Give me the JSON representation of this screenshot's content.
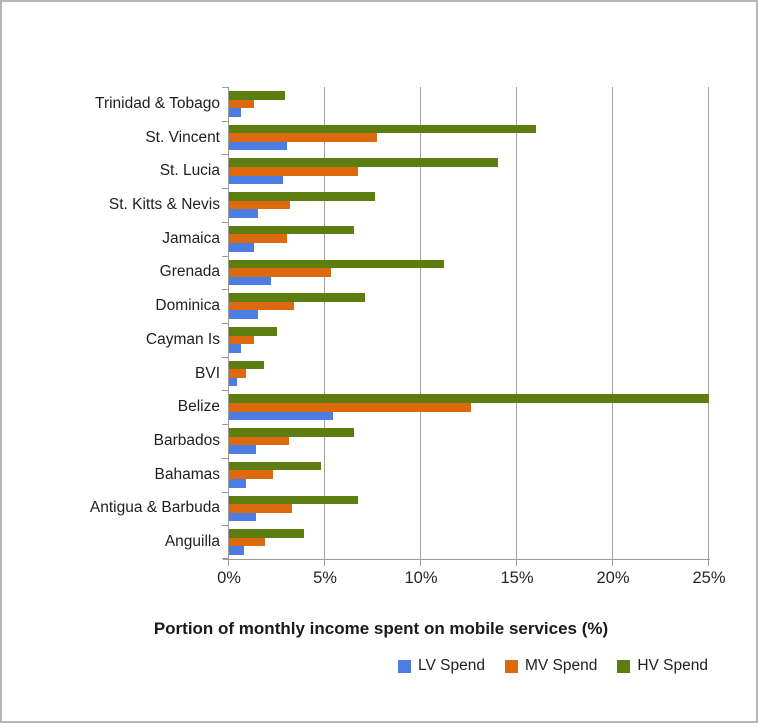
{
  "chart_data": {
    "type": "bar",
    "orientation": "horizontal",
    "title": "Portion of monthly income spent on mobile services (%)",
    "categories": [
      "Trinidad & Tobago",
      "St. Vincent",
      "St. Lucia",
      "St. Kitts & Nevis",
      "Jamaica",
      "Grenada",
      "Dominica",
      "Cayman Is",
      "BVI",
      "Belize",
      "Barbados",
      "Bahamas",
      "Antigua & Barbuda",
      "Anguilla"
    ],
    "series": [
      {
        "name": "LV Spend",
        "color": "#4C7DE2",
        "values": [
          0.6,
          3.0,
          2.8,
          1.5,
          1.3,
          2.2,
          1.5,
          0.6,
          0.4,
          5.4,
          1.4,
          0.9,
          1.4,
          0.8
        ]
      },
      {
        "name": "MV Spend",
        "color": "#DD690E",
        "values": [
          1.3,
          7.7,
          6.7,
          3.2,
          3.0,
          5.3,
          3.4,
          1.3,
          0.9,
          12.6,
          3.1,
          2.3,
          3.3,
          1.9
        ]
      },
      {
        "name": "HV Spend",
        "color": "#5E7D11",
        "values": [
          2.9,
          16.0,
          14.0,
          7.6,
          6.5,
          11.2,
          7.1,
          2.5,
          1.8,
          25.0,
          6.5,
          4.8,
          6.7,
          3.9
        ]
      }
    ],
    "x_ticks": [
      "0%",
      "5%",
      "10%",
      "15%",
      "20%",
      "25%"
    ],
    "xlim": [
      0,
      25
    ],
    "grid": true,
    "legend_position": "bottom-right",
    "axis_color": "#9B9B9B"
  }
}
